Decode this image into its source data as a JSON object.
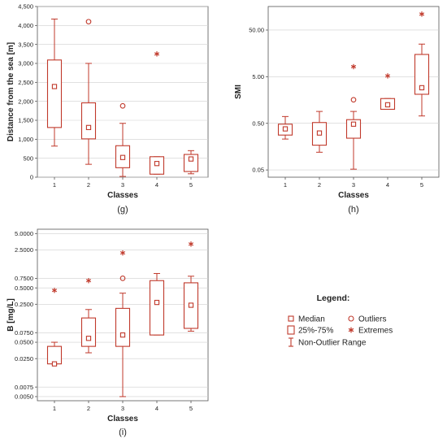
{
  "colors": {
    "accent": "#c0392b",
    "grid": "#cfcfcf",
    "axis": "#555555",
    "text": "#222222"
  },
  "chart_data": [
    {
      "type": "box",
      "panel_label": "(g)",
      "xlabel": "Classes",
      "ylabel": "Distance from the sea [m]",
      "yscale": "linear",
      "ylim": [
        0,
        4500
      ],
      "yticks": [
        0,
        500,
        1000,
        1500,
        2000,
        2500,
        3000,
        3500,
        4000,
        4500
      ],
      "ytick_labels": [
        "0",
        "500",
        "1,000",
        "1,500",
        "2,000",
        "2,500",
        "3,000",
        "3,500",
        "4,000",
        "4,500"
      ],
      "categories": [
        "1",
        "2",
        "3",
        "4",
        "5"
      ],
      "grid": true,
      "boxes": [
        {
          "whisker_low": 820,
          "q1": 1310,
          "median": 2390,
          "q3": 3090,
          "whisker_high": 4170,
          "outliers": [],
          "extremes": []
        },
        {
          "whisker_low": 340,
          "q1": 1010,
          "median": 1310,
          "q3": 1960,
          "whisker_high": 3000,
          "outliers": [
            4100
          ],
          "extremes": []
        },
        {
          "whisker_low": 20,
          "q1": 250,
          "median": 520,
          "q3": 830,
          "whisker_high": 1420,
          "outliers": [
            1880
          ],
          "extremes": []
        },
        {
          "whisker_low": 80,
          "q1": 80,
          "median": 360,
          "q3": 540,
          "whisker_high": 540,
          "outliers": [],
          "extremes": [
            3250
          ]
        },
        {
          "whisker_low": 90,
          "q1": 150,
          "median": 480,
          "q3": 600,
          "whisker_high": 700,
          "outliers": [],
          "extremes": []
        }
      ]
    },
    {
      "type": "box",
      "panel_label": "(h)",
      "xlabel": "Classes",
      "ylabel": "SMI",
      "yscale": "log",
      "ylim": [
        0.035,
        160
      ],
      "yticks": [
        0.05,
        0.5,
        5,
        50
      ],
      "ytick_labels": [
        "0.05",
        "0.50",
        "5.00",
        "50.00"
      ],
      "categories": [
        "1",
        "2",
        "3",
        "4",
        "5"
      ],
      "grid": true,
      "boxes": [
        {
          "whisker_low": 0.23,
          "q1": 0.28,
          "median": 0.38,
          "q3": 0.48,
          "whisker_high": 0.7,
          "outliers": [],
          "extremes": []
        },
        {
          "whisker_low": 0.12,
          "q1": 0.17,
          "median": 0.31,
          "q3": 0.52,
          "whisker_high": 0.9,
          "outliers": [],
          "extremes": []
        },
        {
          "whisker_low": 0.052,
          "q1": 0.24,
          "median": 0.48,
          "q3": 0.6,
          "whisker_high": 0.9,
          "outliers": [
            1.6
          ],
          "extremes": [
            8.2
          ]
        },
        {
          "whisker_low": 1.0,
          "q1": 1.0,
          "median": 1.25,
          "q3": 1.7,
          "whisker_high": 1.7,
          "outliers": [],
          "extremes": [
            5.2
          ]
        },
        {
          "whisker_low": 0.72,
          "q1": 2.1,
          "median": 2.9,
          "q3": 15,
          "whisker_high": 25,
          "outliers": [],
          "extremes": [
            110
          ]
        }
      ]
    },
    {
      "type": "box",
      "panel_label": "(i)",
      "xlabel": "Classes",
      "ylabel": "B [mg/L]",
      "yscale": "log",
      "ylim": [
        0.0042,
        6.0
      ],
      "yticks": [
        0.005,
        0.0075,
        0.025,
        0.05,
        0.075,
        0.25,
        0.5,
        0.75,
        2.5,
        5.0
      ],
      "ytick_labels": [
        "0.0050",
        "0.0075",
        "0.0250",
        "0.0500",
        "0.0750",
        "0.2500",
        "0.5000",
        "0.7500",
        "2.5000",
        "5.0000"
      ],
      "categories": [
        "1",
        "2",
        "3",
        "4",
        "5"
      ],
      "grid": true,
      "boxes": [
        {
          "whisker_low": 0.02,
          "q1": 0.02,
          "median": 0.02,
          "q3": 0.042,
          "whisker_high": 0.05,
          "outliers": [],
          "extremes": [
            0.45
          ]
        },
        {
          "whisker_low": 0.032,
          "q1": 0.042,
          "median": 0.059,
          "q3": 0.14,
          "whisker_high": 0.2,
          "outliers": [],
          "extremes": [
            0.68
          ]
        },
        {
          "whisker_low": 0.005,
          "q1": 0.042,
          "median": 0.068,
          "q3": 0.21,
          "whisker_high": 0.4,
          "outliers": [
            0.75
          ],
          "extremes": [
            2.2
          ]
        },
        {
          "whisker_low": 0.068,
          "q1": 0.068,
          "median": 0.27,
          "q3": 0.68,
          "whisker_high": 0.92,
          "outliers": [],
          "extremes": []
        },
        {
          "whisker_low": 0.08,
          "q1": 0.09,
          "median": 0.24,
          "q3": 0.62,
          "whisker_high": 0.82,
          "outliers": [],
          "extremes": [
            3.2
          ]
        }
      ]
    }
  ],
  "legend": {
    "title": "Legend:",
    "items": [
      {
        "key": "median",
        "label": "Median"
      },
      {
        "key": "outlier",
        "label": "Outliers"
      },
      {
        "key": "box",
        "label": "25%-75%"
      },
      {
        "key": "extreme",
        "label": "Extremes"
      },
      {
        "key": "range",
        "label": "Non-Outlier Range"
      }
    ]
  }
}
